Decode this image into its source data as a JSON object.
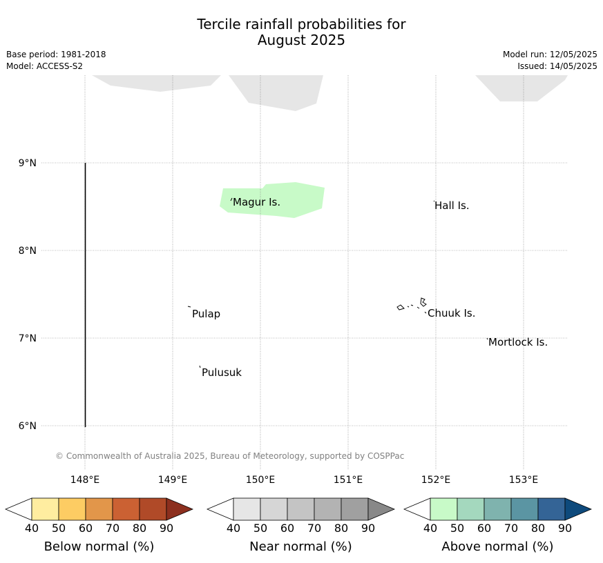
{
  "header": {
    "title_line1": "Tercile rainfall probabilities for",
    "title_line2": "August 2025",
    "base_period": "Base period: 1981-2018",
    "model": "Model: ACCESS-S2",
    "model_run": "Model run: 12/05/2025",
    "issued": "Issued: 14/05/2025"
  },
  "map": {
    "lon_ticks": [
      "148°E",
      "149°E",
      "150°E",
      "151°E",
      "152°E",
      "153°E"
    ],
    "lat_ticks": [
      "9°N",
      "8°N",
      "7°N",
      "6°N"
    ],
    "places": [
      {
        "name": "Magur Is.",
        "lon": 149.7,
        "lat": 8.55
      },
      {
        "name": "Hall Is.",
        "lon": 152.0,
        "lat": 8.5
      },
      {
        "name": "Pulap",
        "lon": 149.2,
        "lat": 7.27
      },
      {
        "name": "Chuuk Is.",
        "lon": 151.9,
        "lat": 7.27
      },
      {
        "name": "Mortlock Is.",
        "lon": 152.6,
        "lat": 6.94
      },
      {
        "name": "Pulusuk",
        "lon": 149.32,
        "lat": 6.6
      }
    ],
    "colors": {
      "land": "#e6e6e6",
      "above_normal_40_50": "#c8fac8"
    },
    "copyright": "© Commonwealth of Australia 2025, Bureau of Meteorology, supported by COSPPac"
  },
  "colorbars": [
    {
      "title": "Below normal (%)",
      "labels": [
        "40",
        "50",
        "60",
        "70",
        "80",
        "90"
      ],
      "colors": [
        "#ffffff",
        "#ffeda0",
        "#fdcc63",
        "#e2964a",
        "#cb6133",
        "#b04a28",
        "#8c2f1e"
      ]
    },
    {
      "title": "Near normal (%)",
      "labels": [
        "40",
        "50",
        "60",
        "70",
        "80",
        "90"
      ],
      "colors": [
        "#ffffff",
        "#e6e6e6",
        "#d6d6d6",
        "#c4c4c4",
        "#b3b3b3",
        "#a0a0a0",
        "#888888"
      ]
    },
    {
      "title": "Above normal (%)",
      "labels": [
        "40",
        "50",
        "60",
        "70",
        "80",
        "90"
      ],
      "colors": [
        "#ffffff",
        "#c8fac8",
        "#a4d8be",
        "#7fb3ae",
        "#5b95a3",
        "#346496",
        "#0e4a7c"
      ]
    }
  ]
}
